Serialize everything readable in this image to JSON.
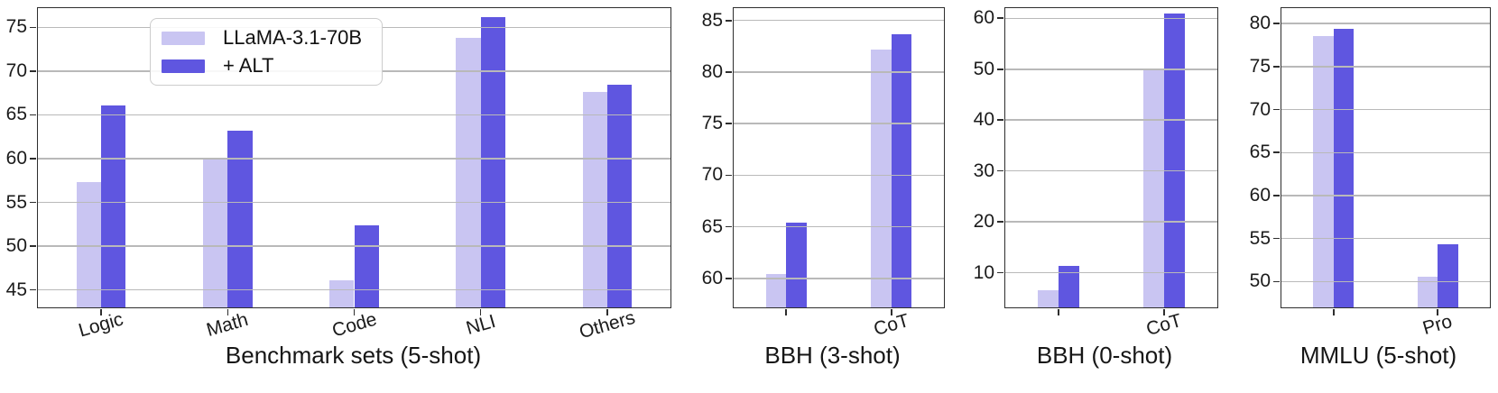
{
  "colors": {
    "llama": "#c9c5f2",
    "alt": "#5f56e0",
    "grid": "#b9b9b9",
    "spine": "#2e2e2e",
    "text": "#1b1b1b",
    "legend_border": "#cccccc"
  },
  "legend": {
    "position": "upper-left-of-first-panel",
    "items": [
      {
        "label": "LLaMA-3.1-70B",
        "color_key": "llama"
      },
      {
        "label": "+ ALT",
        "color_key": "alt"
      }
    ]
  },
  "chart_data": [
    {
      "type": "bar",
      "xlabel": "Benchmark sets (5-shot)",
      "categories": [
        "Logic",
        "Math",
        "Code",
        "NLI",
        "Others"
      ],
      "series": [
        {
          "name": "LLaMA-3.1-70B",
          "values": [
            57.3,
            59.9,
            46.1,
            73.8,
            67.6
          ]
        },
        {
          "name": "+ ALT",
          "values": [
            66.1,
            63.2,
            52.4,
            76.2,
            68.4
          ]
        }
      ],
      "ylim": [
        43.0,
        77.2
      ],
      "yticks": [
        45,
        50,
        55,
        60,
        65,
        70,
        75
      ],
      "grid": true,
      "legend_position": "upper left"
    },
    {
      "type": "bar",
      "xlabel": "BBH (3-shot)",
      "categories": [
        "",
        "CoT"
      ],
      "series": [
        {
          "name": "LLaMA-3.1-70B",
          "values": [
            60.4,
            82.2
          ]
        },
        {
          "name": "+ ALT",
          "values": [
            65.4,
            83.7
          ]
        }
      ],
      "ylim": [
        57.2,
        86.2
      ],
      "yticks": [
        60,
        65,
        70,
        75,
        80,
        85
      ],
      "grid": true
    },
    {
      "type": "bar",
      "xlabel": "BBH (0-shot)",
      "categories": [
        "",
        "CoT"
      ],
      "series": [
        {
          "name": "LLaMA-3.1-70B",
          "values": [
            6.6,
            50.0
          ]
        },
        {
          "name": "+ ALT",
          "values": [
            11.4,
            61.0
          ]
        }
      ],
      "ylim": [
        3.2,
        62.0
      ],
      "yticks": [
        10,
        20,
        30,
        40,
        50,
        60
      ],
      "grid": true
    },
    {
      "type": "bar",
      "xlabel": "MMLU (5-shot)",
      "categories": [
        "",
        "Pro"
      ],
      "series": [
        {
          "name": "LLaMA-3.1-70B",
          "values": [
            78.6,
            50.6
          ]
        },
        {
          "name": "+ ALT",
          "values": [
            79.4,
            54.3
          ]
        }
      ],
      "ylim": [
        47.0,
        81.8
      ],
      "yticks": [
        50,
        55,
        60,
        65,
        70,
        75,
        80
      ],
      "grid": true
    }
  ]
}
